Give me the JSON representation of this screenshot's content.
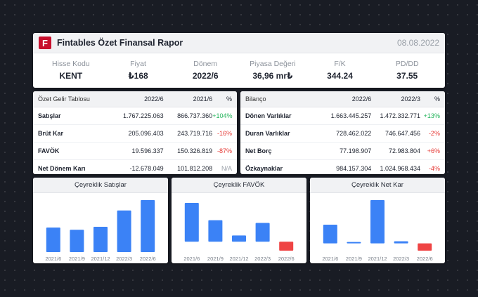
{
  "header": {
    "logo_letter": "F",
    "title": "Fintables Özet Finansal Rapor",
    "date": "08.08.2022",
    "metrics": [
      {
        "label": "Hisse Kodu",
        "value": "KENT"
      },
      {
        "label": "Fiyat",
        "value": "₺168"
      },
      {
        "label": "Dönem",
        "value": "2022/6"
      },
      {
        "label": "Piyasa Değeri",
        "value": "36,96 mr₺"
      },
      {
        "label": "F/K",
        "value": "344.24"
      },
      {
        "label": "PD/DD",
        "value": "37.55"
      }
    ]
  },
  "income": {
    "headers": [
      "Özet Gelir Tablosu",
      "2022/6",
      "2021/6",
      "%"
    ],
    "rows": [
      {
        "label": "Satışlar",
        "v1": "1.767.225.063",
        "v2": "866.737.360",
        "pct": "+104%",
        "tone": "pos"
      },
      {
        "label": "Brüt Kar",
        "v1": "205.096.403",
        "v2": "243.719.716",
        "pct": "-16%",
        "tone": "neg"
      },
      {
        "label": "FAVÖK",
        "v1": "19.596.337",
        "v2": "150.326.819",
        "pct": "-87%",
        "tone": "neg"
      },
      {
        "label": "Net Dönem Karı",
        "v1": "-12.678.049",
        "v2": "101.812.208",
        "pct": "N/A",
        "tone": "neu"
      }
    ]
  },
  "balance": {
    "headers": [
      "Bilanço",
      "2022/6",
      "2022/3",
      "%"
    ],
    "rows": [
      {
        "label": "Dönen Varlıklar",
        "v1": "1.663.445.257",
        "v2": "1.472.332.771",
        "pct": "+13%",
        "tone": "pos"
      },
      {
        "label": "Duran Varlıklar",
        "v1": "728.462.022",
        "v2": "746.647.456",
        "pct": "-2%",
        "tone": "neg"
      },
      {
        "label": "Net Borç",
        "v1": "77.198.907",
        "v2": "72.983.804",
        "pct": "+6%",
        "tone": "neg"
      },
      {
        "label": "Özkaynaklar",
        "v1": "984.157.304",
        "v2": "1.024.968.434",
        "pct": "-4%",
        "tone": "neg"
      }
    ]
  },
  "colors": {
    "positive_bar": "#3b82f6",
    "negative_bar": "#ef4444",
    "brand": "#c8102e"
  },
  "chart_data": [
    {
      "type": "bar",
      "title": "Çeyreklik Satışlar",
      "categories": [
        "2021/6",
        "2021/9",
        "2021/12",
        "2022/3",
        "2022/6"
      ],
      "values": [
        33,
        30,
        34,
        56,
        70
      ],
      "ylim": [
        0,
        70
      ]
    },
    {
      "type": "bar",
      "title": "Çeyreklik FAVÖK",
      "categories": [
        "2021/6",
        "2021/9",
        "2021/12",
        "2022/3",
        "2022/6"
      ],
      "values": [
        56,
        31,
        9,
        27,
        -13
      ],
      "ylim": [
        -15,
        60
      ]
    },
    {
      "type": "bar",
      "title": "Çeyreklik Net Kar",
      "categories": [
        "2021/6",
        "2021/9",
        "2021/12",
        "2022/3",
        "2022/6"
      ],
      "values": [
        26,
        2,
        60,
        3,
        -10
      ],
      "ylim": [
        -12,
        60
      ]
    }
  ]
}
